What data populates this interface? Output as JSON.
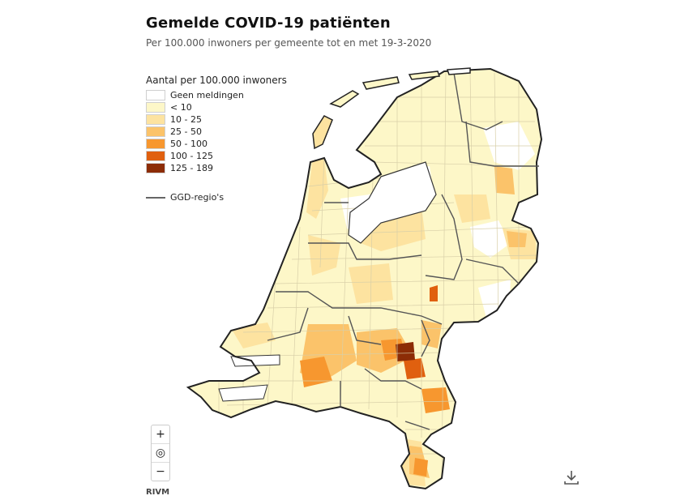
{
  "header": {
    "title": "Gemelde COVID-19 patiënten",
    "subtitle": "Per 100.000 inwoners per gemeente tot en met 19-3-2020"
  },
  "legend": {
    "title": "Aantal per 100.000 inwoners",
    "items": [
      {
        "label": "Geen meldingen",
        "color": "#ffffff"
      },
      {
        "label": "< 10",
        "color": "#fdf7c8"
      },
      {
        "label": "10 - 25",
        "color": "#fde3a0"
      },
      {
        "label": "25 - 50",
        "color": "#fbc36a"
      },
      {
        "label": "50 - 100",
        "color": "#f7972f"
      },
      {
        "label": "100 - 125",
        "color": "#e0600f"
      },
      {
        "label": "125 - 189",
        "color": "#8c2c06"
      }
    ],
    "ggd_label": "GGD-regio's",
    "ggd_line_color": "#666666"
  },
  "zoom": {
    "in": "+",
    "reset": "◎",
    "out": "−"
  },
  "source": "RIVM",
  "icons": {
    "download": "download-icon"
  }
}
